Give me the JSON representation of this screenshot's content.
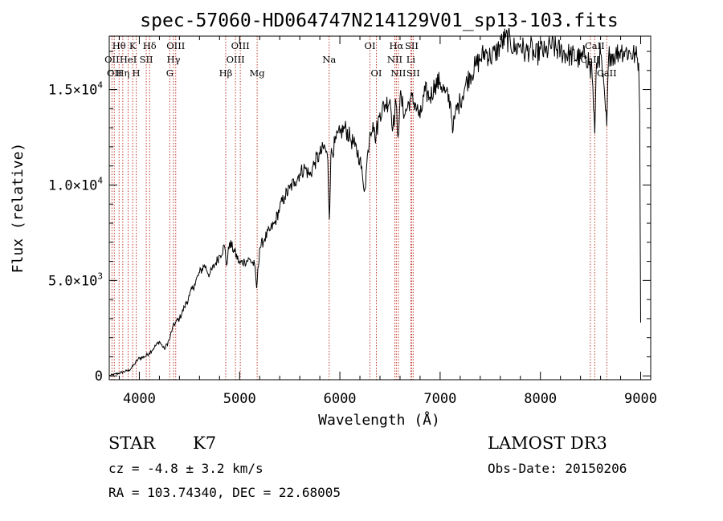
{
  "chart_data": {
    "type": "line",
    "title": "spec-57060-HD064747N214129V01_sp13-103.fits",
    "xlabel": "Wavelength (Å)",
    "ylabel": "Flux (relative)",
    "xlim": [
      3700,
      9100
    ],
    "ylim": [
      -200,
      17800
    ],
    "x_ticks": [
      4000,
      5000,
      6000,
      7000,
      8000,
      9000
    ],
    "x_tick_labels": [
      "4000",
      "5000",
      "6000",
      "7000",
      "8000",
      "9000"
    ],
    "y_ticks": [
      {
        "value": 0,
        "label": "0",
        "exp": ""
      },
      {
        "value": 5000,
        "label": "5.0×10",
        "exp": "3"
      },
      {
        "value": 10000,
        "label": "1.0×10",
        "exp": "4"
      },
      {
        "value": 15000,
        "label": "1.5×10",
        "exp": "4"
      }
    ],
    "series": [
      {
        "name": "spectrum",
        "x": [
          3700,
          3800,
          3900,
          3950,
          3990,
          4050,
          4100,
          4150,
          4200,
          4250,
          4300,
          4330,
          4360,
          4400,
          4450,
          4500,
          4550,
          4600,
          4650,
          4700,
          4750,
          4800,
          4850,
          4870,
          4900,
          4950,
          5000,
          5050,
          5100,
          5150,
          5170,
          5200,
          5250,
          5300,
          5350,
          5400,
          5450,
          5500,
          5550,
          5600,
          5650,
          5700,
          5750,
          5800,
          5850,
          5880,
          5895,
          5910,
          5950,
          6000,
          6050,
          6100,
          6150,
          6200,
          6230,
          6250,
          6280,
          6300,
          6330,
          6350,
          6400,
          6450,
          6500,
          6530,
          6560,
          6580,
          6600,
          6650,
          6700,
          6750,
          6800,
          6850,
          6900,
          6950,
          7000,
          7050,
          7100,
          7130,
          7150,
          7200,
          7250,
          7300,
          7350,
          7400,
          7450,
          7500,
          7550,
          7600,
          7650,
          7700,
          7750,
          7800,
          7850,
          7900,
          7950,
          8000,
          8050,
          8100,
          8200,
          8300,
          8400,
          8450,
          8490,
          8498,
          8510,
          8542,
          8560,
          8600,
          8662,
          8680,
          8700,
          8750,
          8800,
          8850,
          8900,
          8950,
          8980,
          8990,
          9000
        ],
        "y": [
          0,
          150,
          300,
          600,
          900,
          1000,
          1200,
          1500,
          1800,
          1400,
          1900,
          2500,
          2800,
          3000,
          3600,
          4200,
          4800,
          5400,
          5800,
          5300,
          5800,
          6300,
          6800,
          5800,
          7000,
          6500,
          5900,
          6000,
          6100,
          5800,
          4600,
          6700,
          7200,
          7600,
          8000,
          8800,
          9400,
          9800,
          10200,
          10600,
          10900,
          10500,
          11200,
          11600,
          12000,
          11300,
          8200,
          11500,
          12200,
          12700,
          13000,
          12500,
          12000,
          11400,
          10200,
          9800,
          11800,
          12800,
          13300,
          12400,
          13800,
          14200,
          14500,
          13000,
          14300,
          12500,
          14600,
          13700,
          14500,
          14300,
          13500,
          14900,
          14600,
          15300,
          15400,
          14800,
          14400,
          12900,
          13700,
          14400,
          15200,
          15800,
          16200,
          16600,
          17000,
          16700,
          16900,
          17300,
          17700,
          17500,
          17100,
          17400,
          16900,
          17200,
          16700,
          17100,
          16900,
          17300,
          17000,
          16800,
          16600,
          16800,
          16500,
          15600,
          16500,
          12700,
          16400,
          16900,
          13100,
          16700,
          16900,
          16800,
          17100,
          17000,
          16900,
          16800,
          16400,
          13800,
          2800
        ]
      }
    ],
    "spectral_lines": [
      {
        "wl": 3727,
        "label": "OII",
        "row": 2
      },
      {
        "wl": 3750,
        "label": "OII",
        "row": 3
      },
      {
        "wl": 3798,
        "label": "Hθ",
        "row": 1
      },
      {
        "wl": 3835,
        "label": "Hη",
        "row": 3
      },
      {
        "wl": 3889,
        "label": "HeI",
        "row": 2
      },
      {
        "wl": 3934,
        "label": "K",
        "row": 1
      },
      {
        "wl": 3969,
        "label": "H",
        "row": 3
      },
      {
        "wl": 4069,
        "label": "SII",
        "row": 2
      },
      {
        "wl": 4102,
        "label": "Hδ",
        "row": 1
      },
      {
        "wl": 4304,
        "label": "G",
        "row": 3
      },
      {
        "wl": 4341,
        "label": "Hγ",
        "row": 2
      },
      {
        "wl": 4363,
        "label": "OIII",
        "row": 1
      },
      {
        "wl": 4861,
        "label": "Hβ",
        "row": 3
      },
      {
        "wl": 4959,
        "label": "OIII",
        "row": 2
      },
      {
        "wl": 5007,
        "label": "OIII",
        "row": 1
      },
      {
        "wl": 5175,
        "label": "Mg",
        "row": 3
      },
      {
        "wl": 5893,
        "label": "Na",
        "row": 2
      },
      {
        "wl": 6300,
        "label": "OI",
        "row": 1
      },
      {
        "wl": 6364,
        "label": "OI",
        "row": 3
      },
      {
        "wl": 6548,
        "label": "NII",
        "row": 2
      },
      {
        "wl": 6563,
        "label": "Hα",
        "row": 1
      },
      {
        "wl": 6583,
        "label": "NII",
        "row": 3
      },
      {
        "wl": 6708,
        "label": "Li",
        "row": 2
      },
      {
        "wl": 6716,
        "label": "SII",
        "row": 1
      },
      {
        "wl": 6731,
        "label": "SII",
        "row": 3
      },
      {
        "wl": 8498,
        "label": "CaII",
        "row": 2
      },
      {
        "wl": 8542,
        "label": "CaII",
        "row": 1
      },
      {
        "wl": 8662,
        "label": "CaII",
        "row": 3
      }
    ]
  },
  "info": {
    "class_label": "STAR",
    "subclass": "K7",
    "survey": "LAMOST DR3",
    "cz": "cz = -4.8 ± 3.2 km/s",
    "obs_date": "Obs-Date: 20150206",
    "coords": "RA = 103.74340, DEC =  22.68005"
  }
}
